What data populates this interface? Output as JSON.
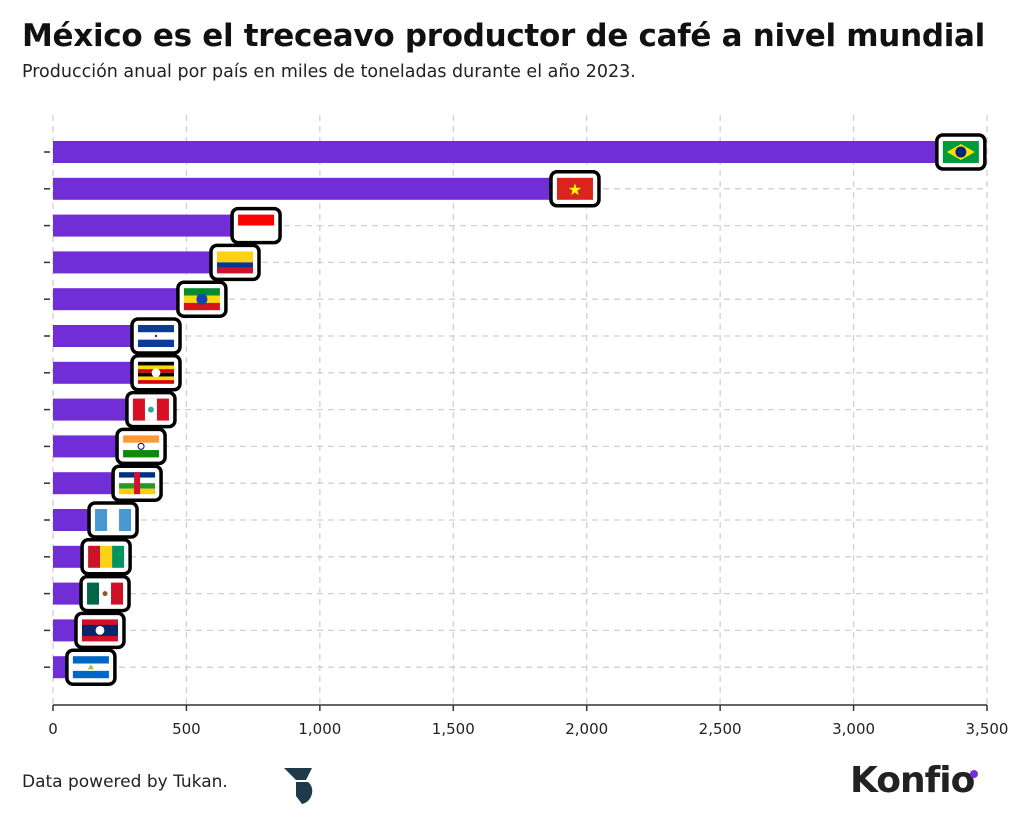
{
  "title": "México es el treceavo productor de café a nivel mundial",
  "subtitle": "Producción anual por país en miles de toneladas durante el año 2023.",
  "footer": {
    "source": "Data powered by Tukan.",
    "brand_logo": "Konfío",
    "tukan_logo": "tukan-icon"
  },
  "colors": {
    "bar": "#722ed6",
    "grid": "#d0d0d0",
    "brand_dot": "#7a2fd6"
  },
  "chart_data": {
    "type": "bar",
    "orientation": "horizontal",
    "categories": [
      "Brasil",
      "Vietnam",
      "Indonesia",
      "Colombia",
      "Etiopía",
      "Honduras",
      "Uganda",
      "Perú",
      "India",
      "República Centroafricana",
      "Guatemala",
      "Guinea",
      "México",
      "Laos",
      "Nicaragua"
    ],
    "category_labels_shown_as": "flag icons",
    "values": [
      3402,
      1956,
      761,
      682,
      558,
      386,
      386,
      367,
      330,
      315,
      225,
      199,
      195,
      176,
      142
    ],
    "xlim": [
      0,
      3500
    ],
    "xticks": [
      0,
      500,
      1000,
      1500,
      2000,
      2500,
      3000,
      3500
    ],
    "xtick_labels": [
      "0",
      "500",
      "1,000",
      "1,500",
      "2,000",
      "2,500",
      "3,000",
      "3,500"
    ],
    "xlabel": "",
    "ylabel": "",
    "grid": true
  }
}
